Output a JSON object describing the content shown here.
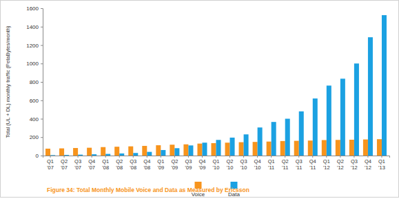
{
  "chart_data": {
    "type": "bar",
    "title": "Figure 34: Total Monthly Mobile Voice and Data as Measured by Ericsson",
    "y_label": "Total (UL + DL) monthly traffic (PetaBytes/month)",
    "categories": [
      "Q1 '07",
      "Q2 '07",
      "Q3 '07",
      "Q4 '07",
      "Q1 '08",
      "Q2 '08",
      "Q3 '08",
      "Q4 '08",
      "Q1 '09",
      "Q2 '09",
      "Q3 '09",
      "Q4 '09",
      "Q1 '10",
      "Q2 '10",
      "Q3 '10",
      "Q4 '10",
      "Q1 '11",
      "Q2 '11",
      "Q3 '11",
      "Q4 '11",
      "Q1 '12",
      "Q2 '12",
      "Q3 '12",
      "Q4 '12",
      "Q1 '13"
    ],
    "series": [
      {
        "name": "Voice",
        "color": "#f7941d",
        "values": [
          75,
          78,
          82,
          85,
          92,
          96,
          100,
          105,
          112,
          118,
          122,
          130,
          135,
          140,
          145,
          148,
          152,
          158,
          160,
          163,
          168,
          170,
          172,
          175,
          178
        ]
      },
      {
        "name": "Data",
        "color": "#1ba1e2",
        "values": [
          5,
          7,
          10,
          14,
          18,
          23,
          28,
          40,
          60,
          80,
          110,
          140,
          170,
          195,
          230,
          305,
          365,
          400,
          480,
          620,
          760,
          835,
          1000,
          1285,
          1525
        ]
      }
    ],
    "ylim": [
      0,
      1600
    ],
    "yticks": [
      0,
      200,
      400,
      600,
      800,
      1000,
      1200,
      1400,
      1600
    ],
    "grid": false,
    "legend": "bottom"
  }
}
